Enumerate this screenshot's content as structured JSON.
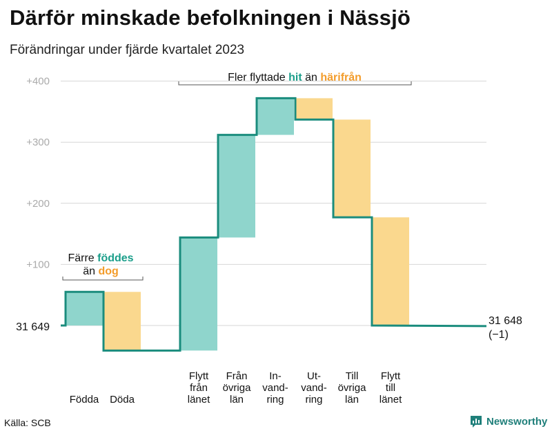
{
  "title": "Därför minskade befolkningen i Nässjö",
  "subtitle": "Förändringar under fjärde kvartalet 2023",
  "source": "Källa: SCB",
  "brand": "Newsworthy",
  "colors": {
    "increase": "#8fd5cc",
    "decrease": "#fad88e",
    "line": "#1a8c7d",
    "grid": "#d6d6d6",
    "axis_text": "#aaaaaa",
    "teal_text": "#1a9e8a",
    "orange_text": "#f39c2a"
  },
  "chart_data": {
    "type": "waterfall",
    "ylim": [
      -45,
      405
    ],
    "y_ticks": [
      100,
      200,
      300,
      400
    ],
    "y_tick_labels": [
      "+100",
      "+200",
      "+300",
      "+400"
    ],
    "start": {
      "label": "31  649",
      "value": 0
    },
    "end": {
      "label": "31 648",
      "change_label": "(−1)",
      "value": -1
    },
    "steps": [
      {
        "category": "Födda",
        "lines": [
          "Födda"
        ],
        "change": 55,
        "kind": "increase"
      },
      {
        "category": "Döda",
        "lines": [
          "Döda"
        ],
        "change": -96,
        "kind": "decrease"
      },
      {
        "category": "Flytt från länet",
        "lines": [
          "Flytt",
          "från",
          "länet"
        ],
        "change": 185,
        "kind": "increase"
      },
      {
        "category": "Från övriga län",
        "lines": [
          "Från",
          "övriga",
          "län"
        ],
        "change": 168,
        "kind": "increase"
      },
      {
        "category": "Invandring",
        "lines": [
          "In-",
          "vand-",
          "ring"
        ],
        "change": 60,
        "kind": "increase"
      },
      {
        "category": "Utvandring",
        "lines": [
          "Ut-",
          "vand-",
          "ring"
        ],
        "change": -35,
        "kind": "decrease"
      },
      {
        "category": "Till övriga län",
        "lines": [
          "Till",
          "övriga",
          "län"
        ],
        "change": -160,
        "kind": "decrease"
      },
      {
        "category": "Flytt till länet",
        "lines": [
          "Flytt",
          "till",
          "länet"
        ],
        "change": -177,
        "kind": "decrease"
      }
    ],
    "annotations": [
      {
        "id": "births",
        "line1": "Färre",
        "line1_em": "föddes",
        "line2": "än",
        "line2_em": "dog"
      },
      {
        "id": "moves",
        "line1": "Fler flyttade",
        "line1_em": "hit",
        "line1_mid": "än",
        "line1_em2": "härifrån"
      }
    ]
  }
}
